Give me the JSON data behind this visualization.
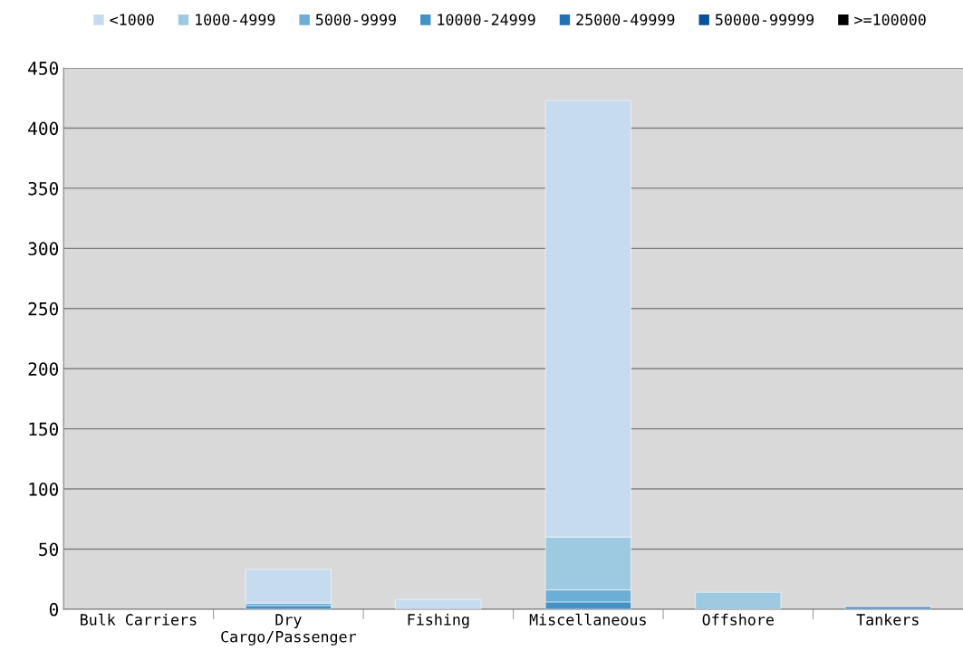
{
  "chart_data": {
    "type": "bar",
    "stacked": true,
    "categories": [
      "Bulk Carriers",
      "Dry\nCargo/Passenger",
      "Fishing",
      "Miscellaneous",
      "Offshore",
      "Tankers"
    ],
    "series": [
      {
        "name": ">=100000",
        "color": "#000000",
        "values": [
          0,
          0,
          0,
          0,
          0,
          0
        ]
      },
      {
        "name": "50000-99999",
        "color": "#08519c",
        "values": [
          0,
          0,
          0,
          0,
          0,
          0
        ]
      },
      {
        "name": "25000-49999",
        "color": "#2171b5",
        "values": [
          0,
          0,
          0,
          0,
          0,
          0
        ]
      },
      {
        "name": "10000-24999",
        "color": "#4292c6",
        "values": [
          0,
          3,
          0,
          6,
          0,
          2
        ]
      },
      {
        "name": "5000-9999",
        "color": "#6baed6",
        "values": [
          0,
          2,
          0,
          10,
          0,
          0
        ]
      },
      {
        "name": "1000-4999",
        "color": "#9ecae1",
        "values": [
          0,
          0,
          0,
          44,
          14,
          0
        ]
      },
      {
        "name": "<1000",
        "color": "#c6dbef",
        "values": [
          0,
          28,
          8,
          363,
          0,
          0
        ]
      }
    ],
    "ylim": [
      0,
      450
    ],
    "yticks": [
      0,
      50,
      100,
      150,
      200,
      250,
      300,
      350,
      400,
      450
    ],
    "grid": "y",
    "legend": "top"
  }
}
